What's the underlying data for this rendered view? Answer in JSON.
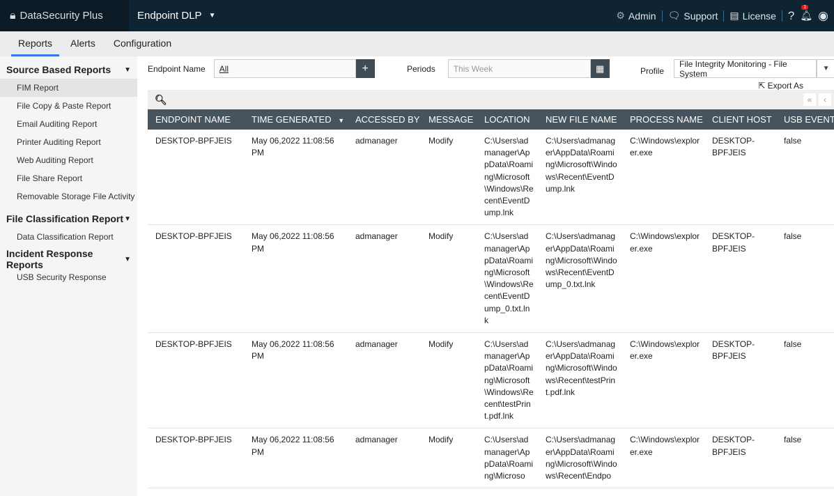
{
  "header": {
    "brand": "DataSecurity Plus",
    "product": "Endpoint DLP",
    "admin": "Admin",
    "support": "Support",
    "license": "License",
    "help": "?",
    "notifications": "1"
  },
  "tabs": [
    "Reports",
    "Alerts",
    "Configuration"
  ],
  "sidebar": {
    "groups": [
      {
        "title": "Source Based Reports",
        "items": [
          "FIM Report",
          "File Copy & Paste Report",
          "Email Auditing Report",
          "Printer Auditing Report",
          "Web Auditing Report",
          "File Share Report",
          "Removable Storage File Activity"
        ]
      },
      {
        "title": "File Classification Report",
        "items": [
          "Data Classification Report"
        ]
      },
      {
        "title": "Incident Response Reports",
        "items": [
          "USB Security Response"
        ]
      }
    ]
  },
  "filters": {
    "endpoint_label": "Endpoint Name",
    "endpoint_value": "All",
    "periods_label": "Periods",
    "periods_value": "This Week",
    "profile_label": "Profile",
    "profile_value": "File Integrity Monitoring - File System",
    "export": "Export As"
  },
  "table": {
    "columns": [
      "ENDPOINT NAME",
      "TIME GENERATED",
      "ACCESSED BY",
      "MESSAGE",
      "LOCATION",
      "NEW FILE NAME",
      "PROCESS NAME",
      "CLIENT HOST",
      "USB EVENT"
    ],
    "rows": [
      [
        "DESKTOP-BPFJEIS",
        "May 06,2022 11:08:56 PM",
        "admanager",
        "Modify",
        "C:\\Users\\admanager\\AppData\\Roaming\\Microsoft\\Windows\\Recent\\EventDump.lnk",
        "C:\\Users\\admanager\\AppData\\Roaming\\Microsoft\\Windows\\Recent\\EventDump.lnk",
        "C:\\Windows\\explorer.exe",
        "DESKTOP-BPFJEIS",
        "false"
      ],
      [
        "DESKTOP-BPFJEIS",
        "May 06,2022 11:08:56 PM",
        "admanager",
        "Modify",
        "C:\\Users\\admanager\\AppData\\Roaming\\Microsoft\\Windows\\Recent\\EventDump_0.txt.lnk",
        "C:\\Users\\admanager\\AppData\\Roaming\\Microsoft\\Windows\\Recent\\EventDump_0.txt.lnk",
        "C:\\Windows\\explorer.exe",
        "DESKTOP-BPFJEIS",
        "false"
      ],
      [
        "DESKTOP-BPFJEIS",
        "May 06,2022 11:08:56 PM",
        "admanager",
        "Modify",
        "C:\\Users\\admanager\\AppData\\Roaming\\Microsoft\\Windows\\Recent\\testPrint.pdf.lnk",
        "C:\\Users\\admanager\\AppData\\Roaming\\Microsoft\\Windows\\Recent\\testPrint.pdf.lnk",
        "C:\\Windows\\explorer.exe",
        "DESKTOP-BPFJEIS",
        "false"
      ],
      [
        "DESKTOP-BPFJEIS",
        "May 06,2022 11:08:56 PM",
        "admanager",
        "Modify",
        "C:\\Users\\admanager\\AppData\\Roaming\\Microso",
        "C:\\Users\\admanager\\AppData\\Roaming\\Microsoft\\Windows\\Recent\\Endpo",
        "C:\\Windows\\explorer.exe",
        "DESKTOP-BPFJEIS",
        "false"
      ]
    ]
  }
}
